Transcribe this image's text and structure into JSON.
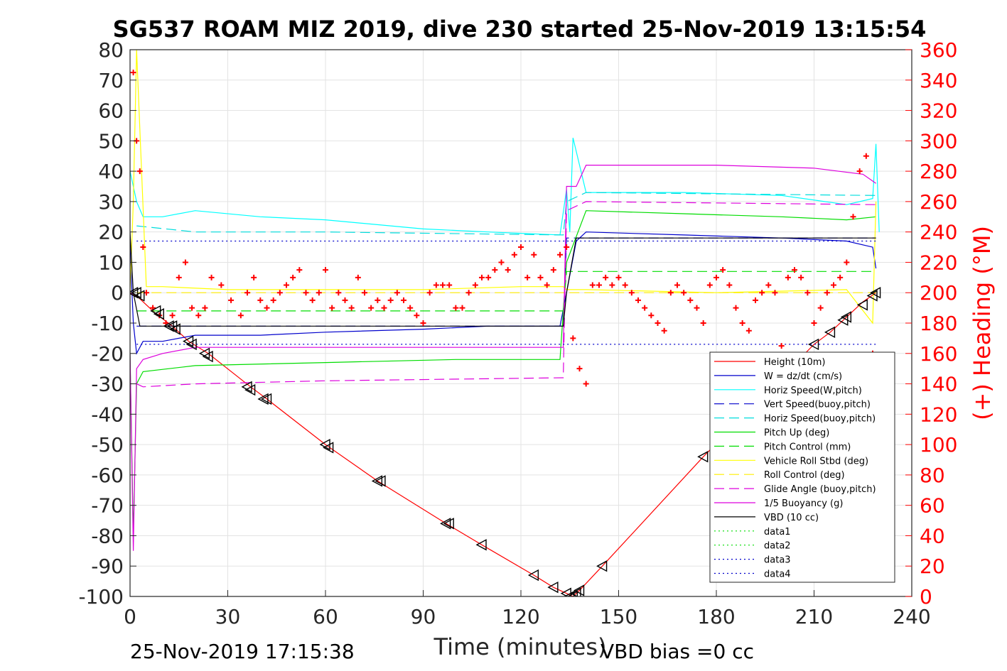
{
  "chart_data": {
    "type": "line",
    "title": "SG537 ROAM MIZ 2019, dive 230 started 25-Nov-2019 13:15:54",
    "xlabel": "Time (minutes)",
    "ylabel": "",
    "ylabel_right": "(+) Heading (°M)",
    "xlim": [
      0,
      240
    ],
    "ylim": [
      -100,
      80
    ],
    "ylim_right": [
      0,
      360
    ],
    "xticks": [
      0,
      30,
      60,
      90,
      120,
      150,
      180,
      210,
      240
    ],
    "yticks": [
      80,
      70,
      60,
      50,
      40,
      30,
      20,
      10,
      0,
      -10,
      -20,
      -30,
      -40,
      -50,
      -60,
      -70,
      -80,
      -90,
      -100
    ],
    "yticks_right": [
      360,
      340,
      320,
      300,
      280,
      260,
      240,
      220,
      200,
      180,
      160,
      140,
      120,
      100,
      80,
      60,
      40,
      20,
      0
    ],
    "grid": true,
    "legend_position": "lower-right",
    "footer_left": "25-Nov-2019 17:15:38",
    "footer_right": "VBD bias =0 cc",
    "series": [
      {
        "name": "Height (10m)",
        "color": "#ff0000",
        "dash": "solid",
        "x": [
          0,
          2,
          8,
          13,
          18,
          24,
          37,
          42,
          60,
          76,
          97,
          108,
          124,
          130,
          134,
          136,
          138,
          145,
          176,
          210,
          215,
          219,
          225,
          229
        ],
        "y": [
          0,
          -1,
          -7,
          -11,
          -16,
          -20,
          -31,
          -35,
          -50,
          -62,
          -76,
          -83,
          -93,
          -97,
          -99,
          -100,
          -98,
          -90,
          -54,
          -17,
          -13,
          -9,
          -3,
          0
        ]
      },
      {
        "name": "W = dz/dt (cm/s)",
        "color": "#0000cc",
        "dash": "solid",
        "x": [
          0,
          1,
          2,
          4,
          10,
          20,
          40,
          60,
          90,
          110,
          132,
          134,
          137,
          140,
          170,
          200,
          220,
          228,
          229
        ],
        "y": [
          15,
          -10,
          -20,
          -16,
          -16,
          -14,
          -14,
          -13,
          -12,
          -11,
          -11,
          0,
          17,
          20,
          19,
          18,
          17,
          15,
          8
        ]
      },
      {
        "name": "Horiz Speed(W,pitch)",
        "color": "#00ffff",
        "dash": "solid",
        "x": [
          0,
          2,
          4,
          10,
          20,
          40,
          60,
          90,
          110,
          132,
          134,
          135,
          136,
          140,
          170,
          200,
          220,
          228,
          229,
          230
        ],
        "y": [
          40,
          30,
          25,
          25,
          27,
          25,
          24,
          21,
          20,
          19,
          34,
          20,
          51,
          33,
          33,
          32,
          29,
          31,
          49,
          20
        ]
      },
      {
        "name": "Vert Speed(buoy,pitch)",
        "color": "#0000cc",
        "dash": "dashed",
        "x": [
          2,
          133,
          134,
          229
        ],
        "y": [
          -11,
          -11,
          18,
          18
        ]
      },
      {
        "name": "Horiz Speed(buoy,pitch)",
        "color": "#00dddd",
        "dash": "dashed",
        "x": [
          2,
          20,
          60,
          133,
          134,
          140,
          229
        ],
        "y": [
          22,
          20,
          20,
          19,
          30,
          33,
          32
        ]
      },
      {
        "name": "Pitch Up (deg)",
        "color": "#00dd00",
        "dash": "solid",
        "x": [
          0,
          1,
          2,
          4,
          20,
          60,
          100,
          132,
          134,
          140,
          170,
          200,
          220,
          229
        ],
        "y": [
          -20,
          -80,
          -30,
          -26,
          -24,
          -23,
          -22,
          -22,
          10,
          27,
          26,
          25,
          24,
          25
        ]
      },
      {
        "name": "Pitch Control (mm)",
        "color": "#00dd00",
        "dash": "dashed",
        "x": [
          2,
          133,
          134,
          229
        ],
        "y": [
          -6,
          -6,
          7,
          7
        ]
      },
      {
        "name": "Vehicle Roll Stbd (deg)",
        "color": "#ffff00",
        "dash": "solid",
        "x": [
          0,
          1,
          2,
          5,
          10,
          30,
          60,
          90,
          120,
          133,
          134,
          140,
          180,
          220,
          228,
          229
        ],
        "y": [
          0,
          30,
          80,
          2,
          2,
          1,
          1,
          1,
          2,
          2,
          1,
          1,
          0,
          1,
          -10,
          30
        ]
      },
      {
        "name": "Roll Control (deg)",
        "color": "#ffee00",
        "dash": "dashed",
        "x": [
          2,
          229
        ],
        "y": [
          0,
          0
        ]
      },
      {
        "name": "Glide Angle (buoy,pitch)",
        "color": "#dd00dd",
        "dash": "dashed",
        "x": [
          2,
          4,
          20,
          60,
          133,
          134,
          140,
          229
        ],
        "y": [
          -30,
          -31,
          -30,
          -29,
          -28,
          27,
          30,
          29
        ]
      },
      {
        "name": "1/5 Buoyancy (g)",
        "color": "#dd00dd",
        "dash": "solid",
        "x": [
          0,
          1,
          2,
          4,
          10,
          20,
          60,
          133,
          134,
          137,
          140,
          180,
          210,
          225,
          229
        ],
        "y": [
          -20,
          -85,
          -25,
          -22,
          -20,
          -18,
          -18,
          -18,
          35,
          35,
          42,
          42,
          41,
          39,
          36
        ]
      },
      {
        "name": "VBD (10 cc)",
        "color": "#000000",
        "dash": "solid",
        "x": [
          0,
          1,
          3,
          133,
          134,
          137,
          229
        ],
        "y": [
          20,
          0,
          -11,
          -11,
          0,
          18,
          18
        ]
      },
      {
        "name": "data1",
        "color": "#00dd00",
        "dash": "dotted",
        "x": [],
        "y": []
      },
      {
        "name": "data2",
        "color": "#00dd00",
        "dash": "dotted",
        "x": [],
        "y": []
      },
      {
        "name": "data3",
        "color": "#0000cc",
        "dash": "dotted",
        "x": [
          2,
          133,
          134,
          229
        ],
        "y": [
          17,
          17,
          17,
          17
        ]
      },
      {
        "name": "data4",
        "color": "#0000cc",
        "dash": "dotted",
        "x": [
          2,
          133,
          134,
          229
        ],
        "y": [
          -17,
          -17,
          -17,
          -17
        ]
      }
    ],
    "heading_series": {
      "name": "(+) Heading",
      "color": "#ff0000",
      "marker": "+",
      "axis": "right",
      "x": [
        1,
        2,
        3,
        4,
        5,
        7,
        9,
        11,
        13,
        15,
        17,
        19,
        21,
        23,
        25,
        28,
        31,
        34,
        36,
        38,
        40,
        42,
        44,
        46,
        48,
        50,
        52,
        54,
        56,
        58,
        60,
        62,
        64,
        66,
        68,
        70,
        72,
        74,
        76,
        78,
        80,
        82,
        84,
        86,
        88,
        90,
        92,
        94,
        96,
        98,
        100,
        102,
        104,
        106,
        108,
        110,
        112,
        114,
        116,
        118,
        120,
        122,
        124,
        126,
        128,
        130,
        132,
        134,
        136,
        138,
        140,
        142,
        144,
        146,
        148,
        150,
        152,
        154,
        156,
        158,
        160,
        162,
        164,
        166,
        168,
        170,
        172,
        174,
        176,
        178,
        180,
        182,
        184,
        186,
        188,
        190,
        192,
        194,
        196,
        198,
        200,
        202,
        204,
        206,
        208,
        210,
        212,
        214,
        216,
        218,
        220,
        222,
        224,
        226,
        228
      ],
      "y": [
        345,
        300,
        280,
        230,
        200,
        190,
        185,
        180,
        185,
        210,
        220,
        190,
        185,
        190,
        210,
        205,
        195,
        185,
        200,
        210,
        195,
        190,
        195,
        200,
        205,
        210,
        215,
        200,
        195,
        200,
        215,
        190,
        200,
        195,
        190,
        210,
        200,
        190,
        195,
        190,
        195,
        200,
        195,
        190,
        185,
        180,
        200,
        205,
        205,
        205,
        190,
        190,
        200,
        205,
        210,
        210,
        215,
        220,
        215,
        225,
        230,
        210,
        225,
        210,
        205,
        215,
        225,
        230,
        170,
        150,
        140,
        205,
        205,
        210,
        205,
        210,
        205,
        200,
        195,
        190,
        185,
        180,
        175,
        200,
        205,
        200,
        195,
        190,
        180,
        205,
        210,
        215,
        205,
        190,
        180,
        175,
        195,
        200,
        205,
        200,
        165,
        210,
        215,
        210,
        200,
        180,
        190,
        200,
        205,
        210,
        220,
        250,
        280,
        290,
        160
      ]
    },
    "dive_markers": {
      "x": [
        1,
        2,
        3,
        8,
        9,
        12,
        13,
        14,
        18,
        19,
        23,
        24,
        36,
        37,
        41,
        42,
        60,
        61,
        76,
        77,
        97,
        98,
        108,
        124,
        130,
        134,
        135,
        136,
        137,
        138,
        145,
        176,
        210,
        215,
        219,
        220,
        225,
        228,
        229
      ],
      "y": [
        0,
        0,
        -1,
        -6,
        -7,
        -11,
        -11,
        -12,
        -16,
        -17,
        -20,
        -21,
        -31,
        -32,
        -35,
        -35,
        -50,
        -51,
        -62,
        -62,
        -76,
        -76,
        -83,
        -93,
        -97,
        -99,
        -100,
        -100,
        -99,
        -98,
        -90,
        -54,
        -17,
        -13,
        -9,
        -8,
        -4,
        -1,
        0
      ]
    }
  }
}
